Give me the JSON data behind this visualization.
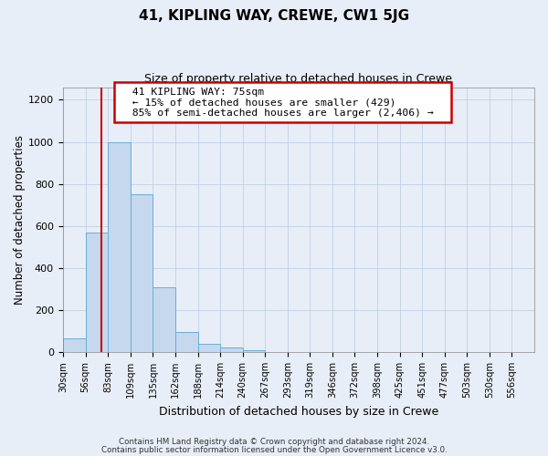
{
  "title": "41, KIPLING WAY, CREWE, CW1 5JG",
  "subtitle": "Size of property relative to detached houses in Crewe",
  "xlabel": "Distribution of detached houses by size in Crewe",
  "ylabel": "Number of detached properties",
  "bar_values": [
    65,
    570,
    1000,
    750,
    310,
    95,
    40,
    20,
    10,
    0,
    0,
    0,
    0,
    0,
    0,
    0,
    0,
    0,
    0,
    0,
    0
  ],
  "bar_labels": [
    "30sqm",
    "56sqm",
    "83sqm",
    "109sqm",
    "135sqm",
    "162sqm",
    "188sqm",
    "214sqm",
    "240sqm",
    "267sqm",
    "293sqm",
    "319sqm",
    "346sqm",
    "372sqm",
    "398sqm",
    "425sqm",
    "451sqm",
    "477sqm",
    "503sqm",
    "530sqm",
    "556sqm"
  ],
  "bar_color": "#c5d8ee",
  "bar_edge_color": "#6aaed6",
  "vline_x_index": 2.15,
  "vline_color": "#cc0000",
  "annotation_title": "41 KIPLING WAY: 75sqm",
  "annotation_line1": "← 15% of detached houses are smaller (429)",
  "annotation_line2": "85% of semi-detached houses are larger (2,406) →",
  "annotation_box_color": "#ffffff",
  "annotation_box_edge": "#cc0000",
  "ylim": [
    0,
    1260
  ],
  "yticks": [
    0,
    200,
    400,
    600,
    800,
    1000,
    1200
  ],
  "n_bins": 21,
  "bin_width": 1,
  "footer1": "Contains HM Land Registry data © Crown copyright and database right 2024.",
  "footer2": "Contains public sector information licensed under the Open Government Licence v3.0.",
  "background_color": "#e8eef8",
  "plot_background": "#e8eef8"
}
